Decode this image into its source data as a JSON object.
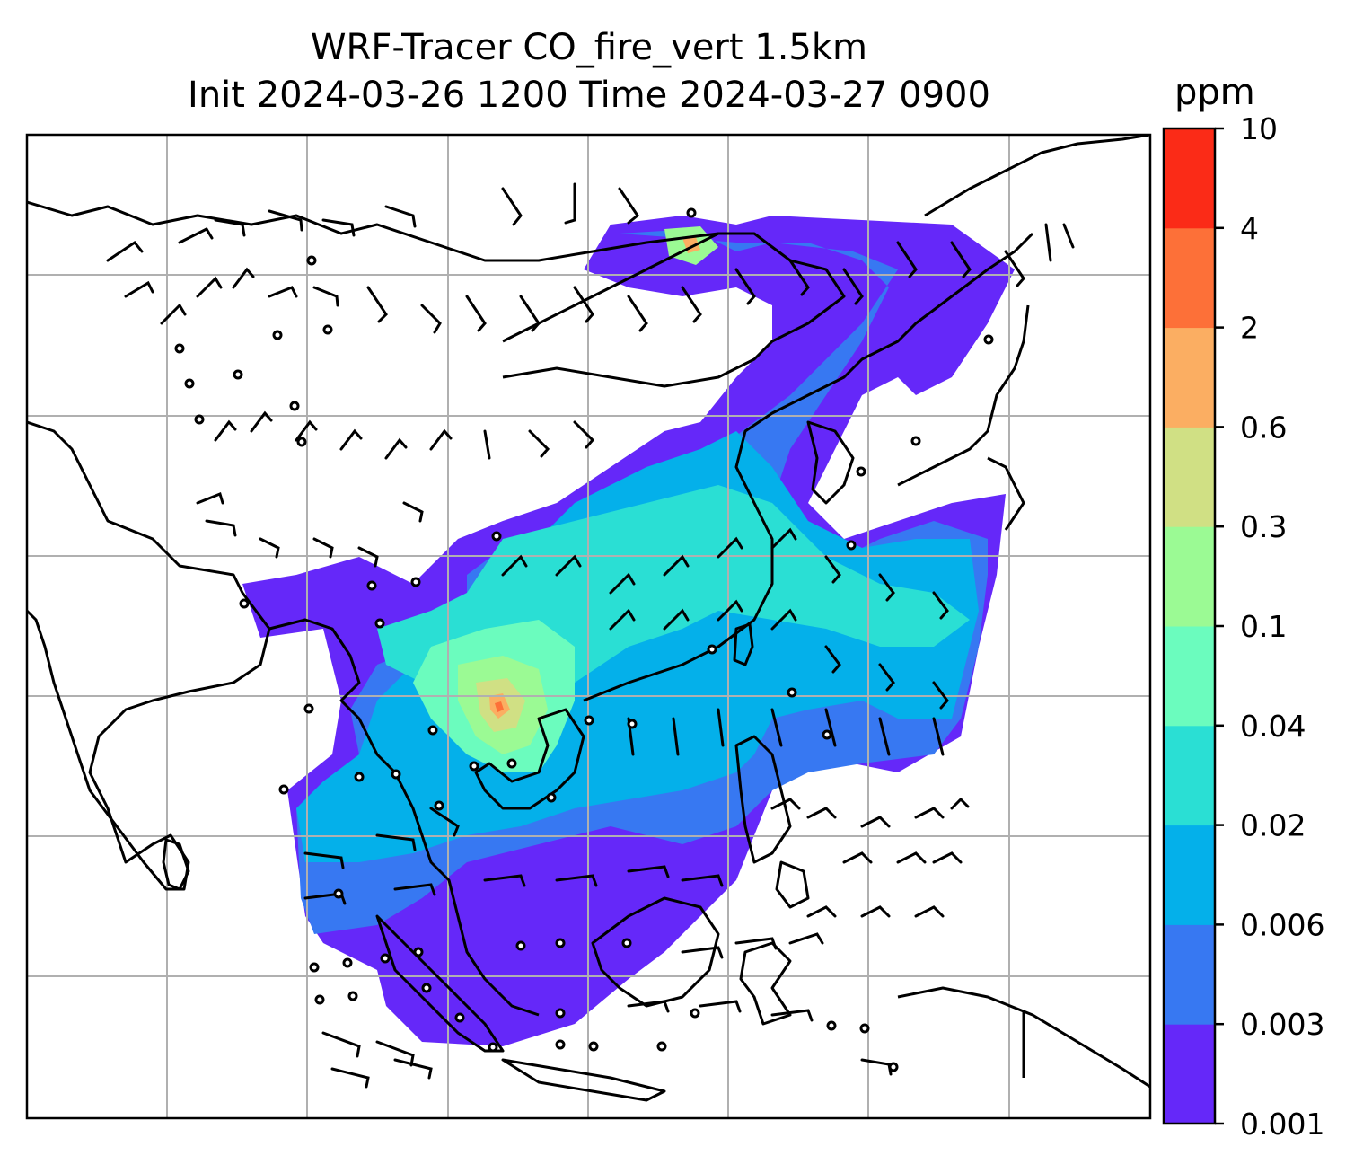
{
  "title": {
    "line1": "WRF-Tracer CO_fire_vert 1.5km",
    "line2": "Init 2024-03-26 1200 Time 2024-03-27 0900"
  },
  "colorbar": {
    "unit": "ppm",
    "levels": [
      "0.001",
      "0.003",
      "0.006",
      "0.02",
      "0.04",
      "0.1",
      "0.3",
      "0.6",
      "2",
      "4",
      "10"
    ],
    "colors": [
      "#6528f9",
      "#3778f2",
      "#04b0ea",
      "#2adfd4",
      "#6bfcbe",
      "#9bfa94",
      "#d0e084",
      "#fbae62",
      "#fd7038",
      "#fb2b17"
    ]
  },
  "map": {
    "projection_grid": "on",
    "wind": "barbs",
    "tracer": "CO_fire_vert"
  }
}
